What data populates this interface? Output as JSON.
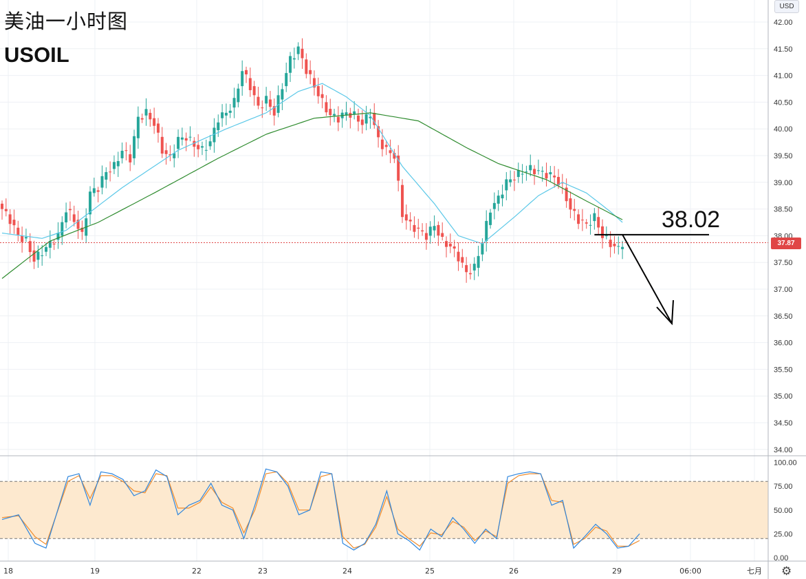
{
  "header": {
    "title": "美油一小时图",
    "symbol": "USOIL"
  },
  "annotation": {
    "level_label": "38.02"
  },
  "axis": {
    "currency": "USD",
    "last_price": "37.87",
    "y_ticks": [
      "42.00",
      "41.50",
      "41.00",
      "40.50",
      "40.00",
      "39.50",
      "39.00",
      "38.50",
      "38.00",
      "37.50",
      "37.00",
      "36.50",
      "36.00",
      "35.50",
      "35.00",
      "34.50",
      "34.00"
    ],
    "osc_ticks": [
      "100.00",
      "75.00",
      "50.00",
      "25.00",
      "0.00"
    ],
    "x_ticks": [
      "18",
      "19",
      "22",
      "23",
      "24",
      "25",
      "26",
      "29",
      "06:00",
      "七月"
    ]
  },
  "icons": {
    "settings": "gear-icon"
  },
  "colors": {
    "up": "#26a69a",
    "down": "#ef5350",
    "ma_fast": "#5bc8e8",
    "ma_slow": "#2e8b2e",
    "osc_k": "#2e86de",
    "osc_d": "#f08c2c",
    "osc_band": "#fde9cf",
    "price_line": "#e04646"
  },
  "chart_data": {
    "type": "candlestick",
    "ylim": [
      34.0,
      42.0
    ],
    "price_anchors": [
      [
        0,
        38.5
      ],
      [
        2,
        38.3
      ],
      [
        4,
        38.0
      ],
      [
        6,
        37.9
      ],
      [
        8,
        37.55
      ],
      [
        10,
        37.7
      ],
      [
        12,
        37.85
      ],
      [
        14,
        38.0
      ],
      [
        16,
        38.5
      ],
      [
        18,
        38.3
      ],
      [
        20,
        38.0
      ],
      [
        22,
        38.8
      ],
      [
        24,
        38.9
      ],
      [
        26,
        39.2
      ],
      [
        28,
        39.3
      ],
      [
        30,
        39.6
      ],
      [
        32,
        39.45
      ],
      [
        34,
        40.2
      ],
      [
        36,
        40.3
      ],
      [
        38,
        40.1
      ],
      [
        40,
        39.6
      ],
      [
        42,
        39.45
      ],
      [
        44,
        39.8
      ],
      [
        46,
        39.85
      ],
      [
        48,
        39.7
      ],
      [
        50,
        39.6
      ],
      [
        52,
        39.75
      ],
      [
        54,
        40.2
      ],
      [
        56,
        40.3
      ],
      [
        58,
        40.5
      ],
      [
        60,
        41.1
      ],
      [
        62,
        40.8
      ],
      [
        64,
        40.4
      ],
      [
        66,
        40.55
      ],
      [
        68,
        40.3
      ],
      [
        70,
        40.8
      ],
      [
        72,
        41.3
      ],
      [
        74,
        41.5
      ],
      [
        76,
        41.1
      ],
      [
        78,
        40.8
      ],
      [
        80,
        40.5
      ],
      [
        82,
        40.25
      ],
      [
        84,
        40.2
      ],
      [
        86,
        40.3
      ],
      [
        88,
        40.25
      ],
      [
        90,
        40.1
      ],
      [
        92,
        40.3
      ],
      [
        94,
        39.8
      ],
      [
        96,
        39.6
      ],
      [
        98,
        39.5
      ],
      [
        100,
        38.4
      ],
      [
        102,
        38.2
      ],
      [
        104,
        38.1
      ],
      [
        106,
        38.0
      ],
      [
        108,
        38.2
      ],
      [
        110,
        37.9
      ],
      [
        112,
        37.8
      ],
      [
        114,
        37.6
      ],
      [
        116,
        37.3
      ],
      [
        118,
        37.4
      ],
      [
        120,
        37.9
      ],
      [
        122,
        38.5
      ],
      [
        124,
        38.7
      ],
      [
        126,
        39.0
      ],
      [
        128,
        39.1
      ],
      [
        130,
        39.2
      ],
      [
        132,
        39.25
      ],
      [
        134,
        39.2
      ],
      [
        136,
        39.15
      ],
      [
        138,
        39.1
      ],
      [
        140,
        38.9
      ],
      [
        142,
        38.5
      ],
      [
        144,
        38.3
      ],
      [
        146,
        38.2
      ],
      [
        148,
        38.35
      ],
      [
        150,
        38.0
      ],
      [
        152,
        37.85
      ],
      [
        154,
        37.75
      ],
      [
        155,
        37.87
      ]
    ],
    "indicators": [
      {
        "name": "fast moving average",
        "anchors": [
          [
            0,
            38.05
          ],
          [
            10,
            37.95
          ],
          [
            16,
            38.1
          ],
          [
            30,
            38.9
          ],
          [
            44,
            39.6
          ],
          [
            56,
            40.0
          ],
          [
            66,
            40.3
          ],
          [
            74,
            40.7
          ],
          [
            80,
            40.85
          ],
          [
            86,
            40.6
          ],
          [
            92,
            40.25
          ],
          [
            100,
            39.3
          ],
          [
            108,
            38.6
          ],
          [
            114,
            38.0
          ],
          [
            120,
            37.85
          ],
          [
            128,
            38.35
          ],
          [
            134,
            38.75
          ],
          [
            140,
            39.0
          ],
          [
            146,
            38.8
          ],
          [
            152,
            38.45
          ],
          [
            155,
            38.25
          ]
        ]
      },
      {
        "name": "slow moving average",
        "anchors": [
          [
            0,
            37.2
          ],
          [
            12,
            37.9
          ],
          [
            24,
            38.25
          ],
          [
            38,
            38.8
          ],
          [
            54,
            39.45
          ],
          [
            66,
            39.9
          ],
          [
            78,
            40.2
          ],
          [
            92,
            40.3
          ],
          [
            104,
            40.15
          ],
          [
            116,
            39.65
          ],
          [
            124,
            39.35
          ],
          [
            136,
            39.05
          ],
          [
            146,
            38.65
          ],
          [
            155,
            38.3
          ]
        ]
      }
    ],
    "oscillator": {
      "ylim": [
        0,
        100
      ],
      "bands": [
        20,
        80
      ],
      "k_anchors": [
        [
          0,
          40
        ],
        [
          3,
          45
        ],
        [
          6,
          15
        ],
        [
          8,
          10
        ],
        [
          12,
          85
        ],
        [
          14,
          88
        ],
        [
          16,
          55
        ],
        [
          18,
          90
        ],
        [
          20,
          88
        ],
        [
          22,
          82
        ],
        [
          24,
          65
        ],
        [
          26,
          70
        ],
        [
          28,
          92
        ],
        [
          30,
          85
        ],
        [
          32,
          45
        ],
        [
          34,
          55
        ],
        [
          36,
          60
        ],
        [
          38,
          78
        ],
        [
          40,
          55
        ],
        [
          42,
          50
        ],
        [
          44,
          20
        ],
        [
          46,
          55
        ],
        [
          48,
          93
        ],
        [
          50,
          90
        ],
        [
          52,
          75
        ],
        [
          54,
          45
        ],
        [
          56,
          50
        ],
        [
          58,
          90
        ],
        [
          60,
          88
        ],
        [
          62,
          15
        ],
        [
          64,
          8
        ],
        [
          66,
          15
        ],
        [
          68,
          35
        ],
        [
          70,
          70
        ],
        [
          72,
          25
        ],
        [
          74,
          18
        ],
        [
          76,
          8
        ],
        [
          78,
          30
        ],
        [
          80,
          22
        ],
        [
          82,
          42
        ],
        [
          84,
          30
        ],
        [
          86,
          15
        ],
        [
          88,
          30
        ],
        [
          90,
          20
        ],
        [
          92,
          85
        ],
        [
          94,
          88
        ],
        [
          96,
          90
        ],
        [
          98,
          88
        ],
        [
          100,
          55
        ],
        [
          102,
          60
        ],
        [
          104,
          10
        ],
        [
          106,
          22
        ],
        [
          108,
          35
        ],
        [
          110,
          25
        ],
        [
          112,
          10
        ],
        [
          114,
          12
        ],
        [
          116,
          25
        ]
      ],
      "d_anchors": [
        [
          0,
          42
        ],
        [
          3,
          44
        ],
        [
          6,
          22
        ],
        [
          8,
          14
        ],
        [
          12,
          80
        ],
        [
          14,
          86
        ],
        [
          16,
          62
        ],
        [
          18,
          86
        ],
        [
          20,
          86
        ],
        [
          22,
          80
        ],
        [
          24,
          70
        ],
        [
          26,
          68
        ],
        [
          28,
          88
        ],
        [
          30,
          86
        ],
        [
          32,
          52
        ],
        [
          34,
          52
        ],
        [
          36,
          58
        ],
        [
          38,
          74
        ],
        [
          40,
          58
        ],
        [
          42,
          52
        ],
        [
          44,
          26
        ],
        [
          46,
          50
        ],
        [
          48,
          88
        ],
        [
          50,
          90
        ],
        [
          52,
          78
        ],
        [
          54,
          50
        ],
        [
          56,
          50
        ],
        [
          58,
          85
        ],
        [
          60,
          88
        ],
        [
          62,
          22
        ],
        [
          64,
          10
        ],
        [
          66,
          14
        ],
        [
          68,
          32
        ],
        [
          70,
          64
        ],
        [
          72,
          30
        ],
        [
          74,
          20
        ],
        [
          76,
          12
        ],
        [
          78,
          26
        ],
        [
          80,
          24
        ],
        [
          82,
          38
        ],
        [
          84,
          32
        ],
        [
          86,
          18
        ],
        [
          88,
          28
        ],
        [
          90,
          22
        ],
        [
          92,
          78
        ],
        [
          94,
          86
        ],
        [
          96,
          88
        ],
        [
          98,
          88
        ],
        [
          100,
          60
        ],
        [
          102,
          58
        ],
        [
          104,
          14
        ],
        [
          106,
          20
        ],
        [
          108,
          32
        ],
        [
          110,
          28
        ],
        [
          112,
          12
        ],
        [
          114,
          12
        ],
        [
          116,
          18
        ]
      ]
    }
  }
}
